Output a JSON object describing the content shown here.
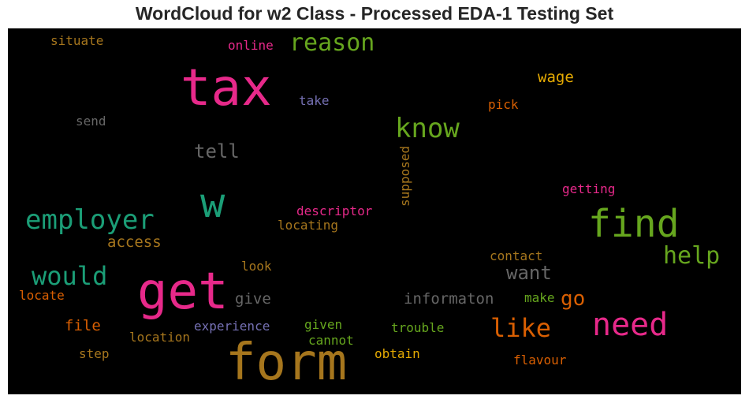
{
  "chart_data": {
    "type": "wordcloud",
    "title": "WordCloud for w2 Class - Processed EDA-1 Testing Set",
    "words": [
      {
        "text": "form",
        "color": "#a6761d"
      },
      {
        "text": "tax",
        "color": "#e7298a"
      },
      {
        "text": "get",
        "color": "#e7298a"
      },
      {
        "text": "find",
        "color": "#66a61e"
      },
      {
        "text": "w",
        "color": "#1b9e77"
      },
      {
        "text": "need",
        "color": "#e7298a"
      },
      {
        "text": "employer",
        "color": "#1b9e77"
      },
      {
        "text": "know",
        "color": "#66a61e"
      },
      {
        "text": "would",
        "color": "#1b9e77"
      },
      {
        "text": "reason",
        "color": "#66a61e"
      },
      {
        "text": "like",
        "color": "#d95f02"
      },
      {
        "text": "help",
        "color": "#66a61e"
      },
      {
        "text": "tell",
        "color": "#666666"
      },
      {
        "text": "want",
        "color": "#666666"
      },
      {
        "text": "go",
        "color": "#d95f02"
      },
      {
        "text": "access",
        "color": "#a6761d"
      },
      {
        "text": "informaton",
        "color": "#666666"
      },
      {
        "text": "give",
        "color": "#666666"
      },
      {
        "text": "wage",
        "color": "#e6ab02"
      },
      {
        "text": "file",
        "color": "#d95f02"
      },
      {
        "text": "supposed",
        "color": "#a6761d"
      },
      {
        "text": "descriptor",
        "color": "#e7298a"
      },
      {
        "text": "locating",
        "color": "#a6761d"
      },
      {
        "text": "online",
        "color": "#e7298a"
      },
      {
        "text": "situate",
        "color": "#a6761d"
      },
      {
        "text": "contact",
        "color": "#a6761d"
      },
      {
        "text": "getting",
        "color": "#e7298a"
      },
      {
        "text": "experience",
        "color": "#7570b3"
      },
      {
        "text": "location",
        "color": "#a6761d"
      },
      {
        "text": "trouble",
        "color": "#66a61e"
      },
      {
        "text": "obtain",
        "color": "#e6ab02"
      },
      {
        "text": "flavour",
        "color": "#d95f02"
      },
      {
        "text": "given",
        "color": "#66a61e"
      },
      {
        "text": "cannot",
        "color": "#66a61e"
      },
      {
        "text": "make",
        "color": "#66a61e"
      },
      {
        "text": "look",
        "color": "#a6761d"
      },
      {
        "text": "locate",
        "color": "#d95f02"
      },
      {
        "text": "step",
        "color": "#a6761d"
      },
      {
        "text": "send",
        "color": "#666666"
      },
      {
        "text": "take",
        "color": "#7570b3"
      },
      {
        "text": "pick",
        "color": "#d95f02"
      }
    ]
  }
}
